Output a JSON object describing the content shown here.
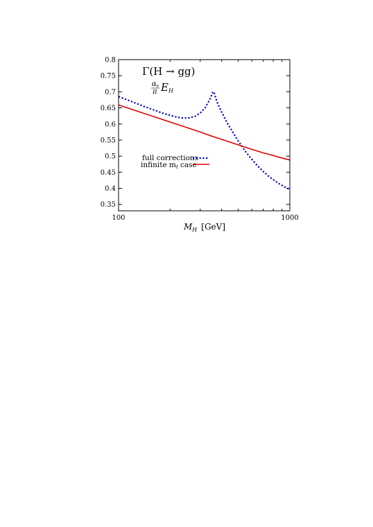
{
  "chart_data": {
    "type": "line",
    "title": "Γ(H → gg)",
    "subtitle": {
      "frac_num": "α",
      "frac_num_sub": "s",
      "frac_den": "π",
      "main": "E",
      "main_sub": "H"
    },
    "xlabel": {
      "main": "M",
      "sub": "H",
      "unit": "[GeV]"
    },
    "ylabel": "",
    "xscale": "log",
    "xlim": [
      100,
      1000
    ],
    "ylim": [
      0.33,
      0.8
    ],
    "xticks": [
      100,
      1000
    ],
    "xtick_labels": [
      "100",
      "1000"
    ],
    "yticks": [
      0.35,
      0.4,
      0.45,
      0.5,
      0.55,
      0.6,
      0.65,
      0.7,
      0.75,
      0.8
    ],
    "ytick_labels": [
      "0.35",
      "0.4",
      "0.45",
      "0.5",
      "0.55",
      "0.6",
      "0.65",
      "0.7",
      "0.75",
      "0.8"
    ],
    "grid": false,
    "legend_position": "middle-left",
    "series": [
      {
        "name": "full corrections",
        "color": "#0000cc",
        "dash": "dotted",
        "x": [
          100,
          120,
          140,
          160,
          180,
          200,
          220,
          240,
          260,
          280,
          300,
          320,
          340,
          350,
          355,
          360,
          365,
          370,
          380,
          400,
          430,
          460,
          500,
          550,
          600,
          650,
          700,
          750,
          800,
          850,
          900,
          950,
          1000
        ],
        "y": [
          0.685,
          0.669,
          0.655,
          0.644,
          0.634,
          0.627,
          0.621,
          0.618,
          0.619,
          0.624,
          0.634,
          0.65,
          0.675,
          0.69,
          0.7,
          0.699,
          0.69,
          0.679,
          0.662,
          0.637,
          0.604,
          0.578,
          0.547,
          0.515,
          0.49,
          0.469,
          0.452,
          0.438,
          0.427,
          0.417,
          0.409,
          0.402,
          0.396
        ]
      },
      {
        "name": "infinite m",
        "name_sub": "t",
        "name_suffix": "case",
        "color": "#dd0000",
        "dash": "solid",
        "x": [
          100,
          150,
          200,
          250,
          300,
          350,
          400,
          500,
          600,
          700,
          800,
          900,
          1000
        ],
        "y": [
          0.659,
          0.628,
          0.606,
          0.589,
          0.575,
          0.562,
          0.552,
          0.535,
          0.521,
          0.51,
          0.502,
          0.494,
          0.488
        ]
      }
    ]
  }
}
